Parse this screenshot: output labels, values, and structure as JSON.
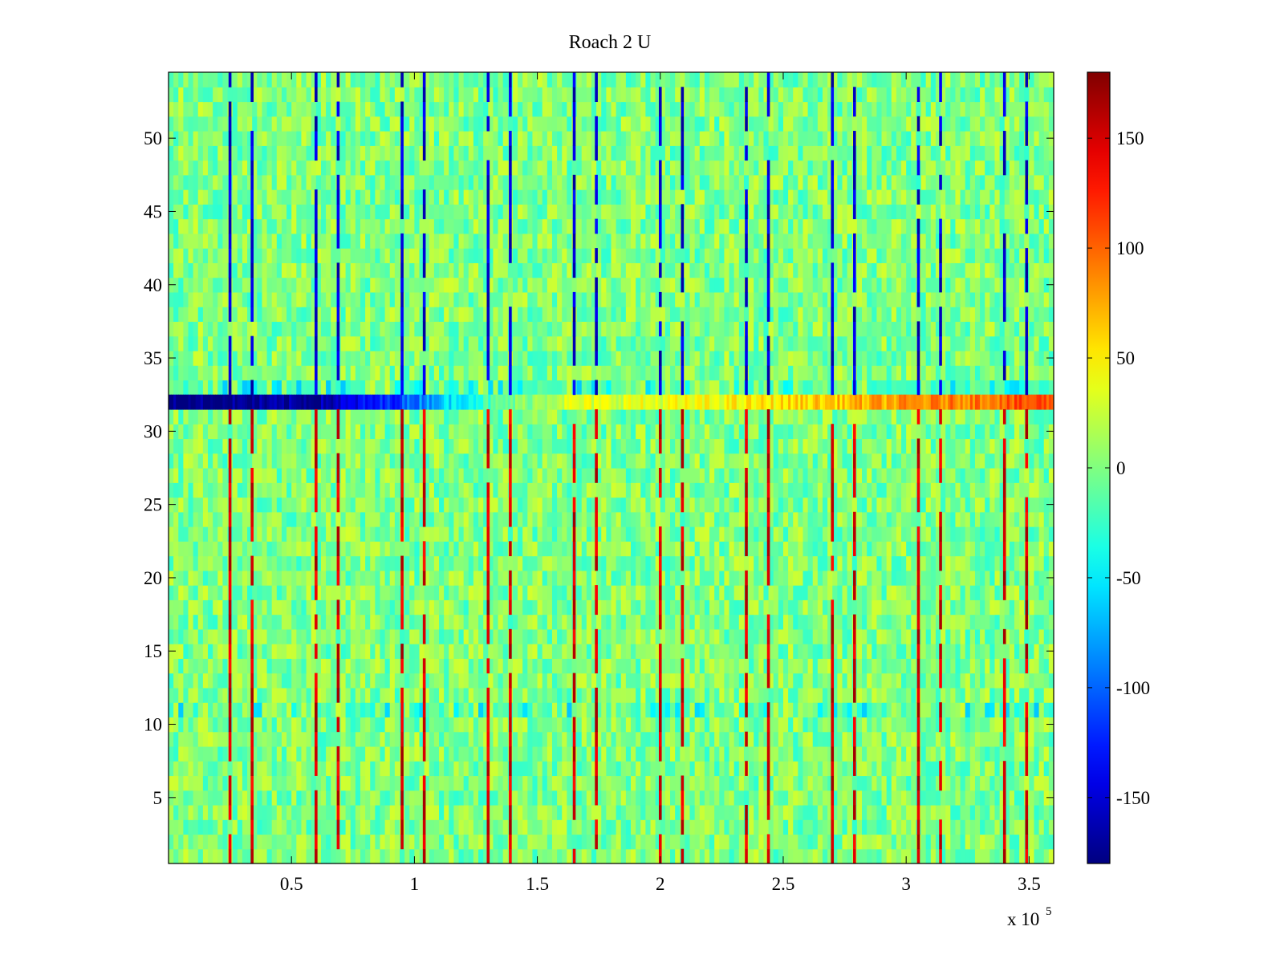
{
  "chart_data": {
    "type": "heatmap",
    "title": "Roach 2 U",
    "xlabel": "",
    "ylabel": "",
    "x_multiplier_label": "x 10",
    "x_multiplier_exponent": "5",
    "xlim": [
      0,
      360000
    ],
    "ylim": [
      0.5,
      54.5
    ],
    "x_ticks": [
      50000,
      100000,
      150000,
      200000,
      250000,
      300000,
      350000
    ],
    "x_tick_labels": [
      "0.5",
      "1",
      "1.5",
      "2",
      "2.5",
      "3",
      "3.5"
    ],
    "y_ticks": [
      5,
      10,
      15,
      20,
      25,
      30,
      35,
      40,
      45,
      50
    ],
    "y_tick_labels": [
      "5",
      "10",
      "15",
      "20",
      "25",
      "30",
      "35",
      "40",
      "45",
      "50"
    ],
    "colorbar": {
      "colormap": "jet",
      "clim": [
        -180,
        180
      ],
      "ticks": [
        -150,
        -100,
        -50,
        0,
        50,
        100,
        150
      ],
      "tick_labels": [
        "-150",
        "-100",
        "-50",
        "0",
        "50",
        "100",
        "150"
      ]
    },
    "grid": false,
    "background_range": [
      -30,
      30
    ],
    "spike_columns_x": [
      25000,
      34000,
      60000,
      69000,
      95000,
      104000,
      130000,
      139000,
      165000,
      174000,
      200000,
      209000,
      235000,
      244000,
      270000,
      279000,
      305000,
      314000,
      340000,
      349000
    ],
    "spike_value_rows_1_to_31": 170,
    "spike_value_rows_33_to_54": -170,
    "anomaly_row": {
      "row": 32,
      "x": [
        0,
        60000,
        90000,
        120000,
        160000,
        220000,
        260000,
        300000,
        360000
      ],
      "values": [
        -180,
        -170,
        -120,
        -40,
        30,
        40,
        60,
        80,
        110
      ]
    }
  }
}
